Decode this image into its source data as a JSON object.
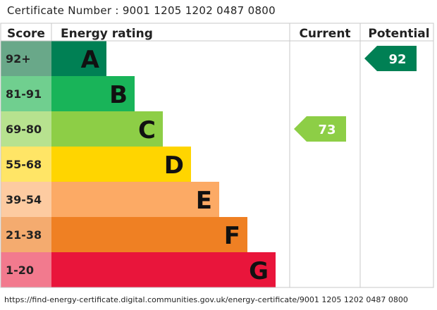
{
  "certificate": "Certificate Number : 9001 1205 1202 0487 0800",
  "url": "https://find-energy-certificate.digital.communities.gov.uk/energy-certificate/9001 1205 1202 0487 0800",
  "chart_data": {
    "type": "bar",
    "headers": {
      "score": "Score",
      "rating": "Energy rating",
      "current": "Current",
      "potential": "Potential"
    },
    "bands": [
      {
        "score": "92+",
        "letter": "A",
        "bar": "#008054",
        "score_bg": "#69a889"
      },
      {
        "score": "81-91",
        "letter": "B",
        "bar": "#19b459",
        "score_bg": "#70cf8f"
      },
      {
        "score": "69-80",
        "letter": "C",
        "bar": "#8dce46",
        "score_bg": "#b7e28f"
      },
      {
        "score": "55-68",
        "letter": "D",
        "bar": "#ffd500",
        "score_bg": "#ffe566"
      },
      {
        "score": "39-54",
        "letter": "E",
        "bar": "#fcaa65",
        "score_bg": "#fdcba1"
      },
      {
        "score": "21-38",
        "letter": "F",
        "bar": "#ef8023",
        "score_bg": "#f4ab6f"
      },
      {
        "score": "1-20",
        "letter": "G",
        "bar": "#e9153b",
        "score_bg": "#f27a8e"
      }
    ],
    "current": {
      "value": 73,
      "band": "C",
      "color": "#8dce46"
    },
    "potential": {
      "value": 92,
      "band": "A",
      "color": "#008054"
    }
  }
}
